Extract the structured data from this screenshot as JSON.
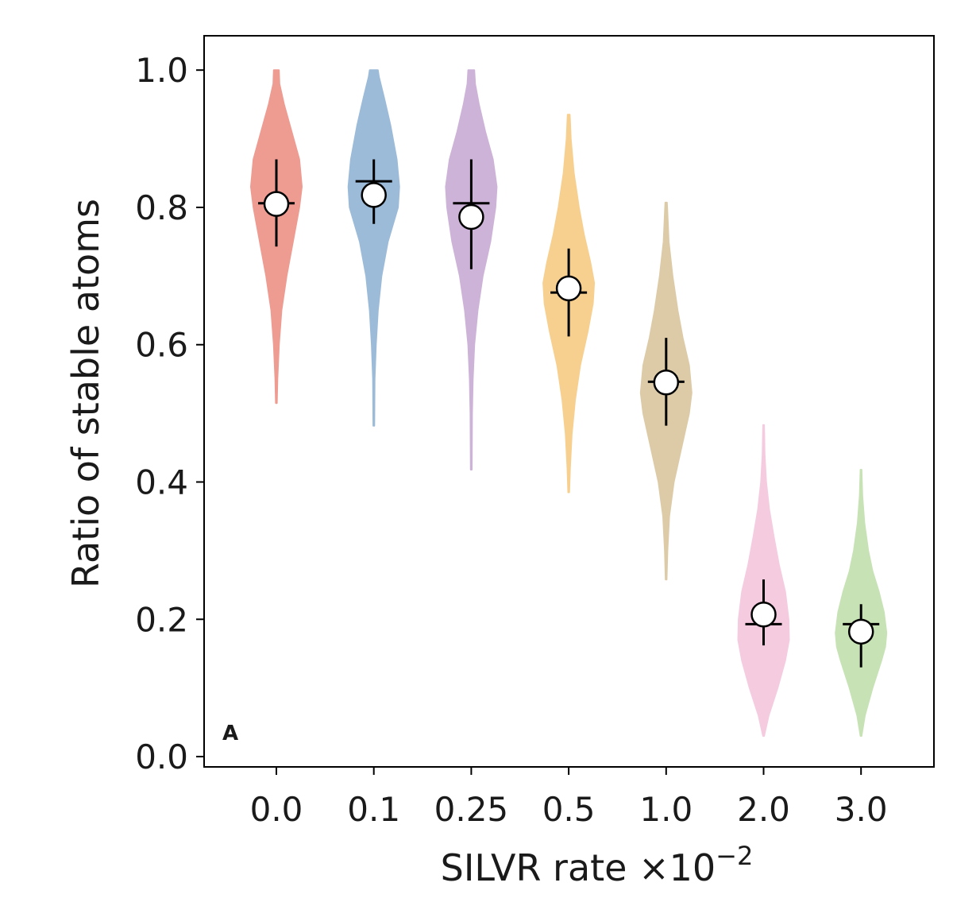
{
  "chart_data": {
    "type": "violin",
    "panel_label": "A",
    "xlabel": "SILVR rate ×10",
    "xlabel_exponent": "−2",
    "ylabel": "Ratio of stable atoms",
    "ylim": [
      -0.015,
      1.05
    ],
    "yticks": [
      0.0,
      0.2,
      0.4,
      0.6,
      0.8,
      1.0
    ],
    "ytick_labels": [
      "0.0",
      "0.2",
      "0.4",
      "0.6",
      "0.8",
      "1.0"
    ],
    "categories": [
      "0.0",
      "0.1",
      "0.25",
      "0.5",
      "1.0",
      "2.0",
      "3.0"
    ],
    "series": [
      {
        "name": "0.0",
        "color": "#ee9b91",
        "mean": 0.805,
        "median": 0.806,
        "err_low": 0.743,
        "err_high": 0.87,
        "density": [
          [
            0.515,
            0.02
          ],
          [
            0.55,
            0.04
          ],
          [
            0.6,
            0.1
          ],
          [
            0.65,
            0.2
          ],
          [
            0.7,
            0.4
          ],
          [
            0.75,
            0.65
          ],
          [
            0.8,
            0.9
          ],
          [
            0.83,
            1.0
          ],
          [
            0.87,
            0.9
          ],
          [
            0.91,
            0.6
          ],
          [
            0.95,
            0.3
          ],
          [
            0.98,
            0.12
          ],
          [
            1.0,
            0.1
          ]
        ]
      },
      {
        "name": "0.1",
        "color": "#9cbbd9",
        "mean": 0.818,
        "median": 0.838,
        "err_low": 0.776,
        "err_high": 0.87,
        "density": [
          [
            0.482,
            0.02
          ],
          [
            0.55,
            0.03
          ],
          [
            0.6,
            0.08
          ],
          [
            0.65,
            0.16
          ],
          [
            0.7,
            0.3
          ],
          [
            0.75,
            0.55
          ],
          [
            0.8,
            0.95
          ],
          [
            0.83,
            1.0
          ],
          [
            0.87,
            0.9
          ],
          [
            0.92,
            0.65
          ],
          [
            0.96,
            0.4
          ],
          [
            0.99,
            0.2
          ],
          [
            1.0,
            0.16
          ]
        ]
      },
      {
        "name": "0.25",
        "color": "#cdb3d8",
        "mean": 0.786,
        "median": 0.806,
        "err_low": 0.71,
        "err_high": 0.87,
        "density": [
          [
            0.418,
            0.02
          ],
          [
            0.5,
            0.03
          ],
          [
            0.55,
            0.06
          ],
          [
            0.6,
            0.12
          ],
          [
            0.65,
            0.25
          ],
          [
            0.7,
            0.45
          ],
          [
            0.75,
            0.75
          ],
          [
            0.8,
            0.95
          ],
          [
            0.83,
            1.0
          ],
          [
            0.87,
            0.85
          ],
          [
            0.91,
            0.55
          ],
          [
            0.95,
            0.3
          ],
          [
            0.98,
            0.15
          ],
          [
            1.0,
            0.12
          ]
        ]
      },
      {
        "name": "0.5",
        "color": "#f7cf8f",
        "mean": 0.682,
        "median": 0.676,
        "err_low": 0.612,
        "err_high": 0.74,
        "density": [
          [
            0.385,
            0.02
          ],
          [
            0.42,
            0.05
          ],
          [
            0.47,
            0.12
          ],
          [
            0.52,
            0.25
          ],
          [
            0.57,
            0.45
          ],
          [
            0.62,
            0.75
          ],
          [
            0.66,
            0.95
          ],
          [
            0.69,
            1.0
          ],
          [
            0.72,
            0.85
          ],
          [
            0.76,
            0.6
          ],
          [
            0.8,
            0.4
          ],
          [
            0.85,
            0.2
          ],
          [
            0.9,
            0.08
          ],
          [
            0.935,
            0.04
          ]
        ]
      },
      {
        "name": "1.0",
        "color": "#ddcba8",
        "mean": 0.545,
        "median": 0.546,
        "err_low": 0.482,
        "err_high": 0.61,
        "density": [
          [
            0.258,
            0.02
          ],
          [
            0.3,
            0.05
          ],
          [
            0.35,
            0.12
          ],
          [
            0.4,
            0.3
          ],
          [
            0.45,
            0.6
          ],
          [
            0.5,
            0.9
          ],
          [
            0.53,
            1.0
          ],
          [
            0.57,
            0.9
          ],
          [
            0.61,
            0.65
          ],
          [
            0.65,
            0.45
          ],
          [
            0.7,
            0.25
          ],
          [
            0.75,
            0.1
          ],
          [
            0.8,
            0.04
          ],
          [
            0.807,
            0.03
          ]
        ]
      },
      {
        "name": "2.0",
        "color": "#f5cbe0",
        "mean": 0.207,
        "median": 0.193,
        "err_low": 0.162,
        "err_high": 0.258,
        "density": [
          [
            0.03,
            0.02
          ],
          [
            0.06,
            0.2
          ],
          [
            0.1,
            0.55
          ],
          [
            0.14,
            0.85
          ],
          [
            0.17,
            1.0
          ],
          [
            0.2,
            0.98
          ],
          [
            0.24,
            0.85
          ],
          [
            0.28,
            0.6
          ],
          [
            0.32,
            0.4
          ],
          [
            0.36,
            0.22
          ],
          [
            0.4,
            0.1
          ],
          [
            0.44,
            0.04
          ],
          [
            0.483,
            0.02
          ]
        ]
      },
      {
        "name": "3.0",
        "color": "#c7e2b5",
        "mean": 0.182,
        "median": 0.193,
        "err_low": 0.13,
        "err_high": 0.222,
        "density": [
          [
            0.03,
            0.02
          ],
          [
            0.06,
            0.15
          ],
          [
            0.1,
            0.45
          ],
          [
            0.14,
            0.8
          ],
          [
            0.16,
            0.95
          ],
          [
            0.18,
            1.0
          ],
          [
            0.21,
            0.9
          ],
          [
            0.24,
            0.7
          ],
          [
            0.27,
            0.45
          ],
          [
            0.3,
            0.28
          ],
          [
            0.34,
            0.13
          ],
          [
            0.38,
            0.05
          ],
          [
            0.418,
            0.02
          ]
        ]
      }
    ]
  }
}
